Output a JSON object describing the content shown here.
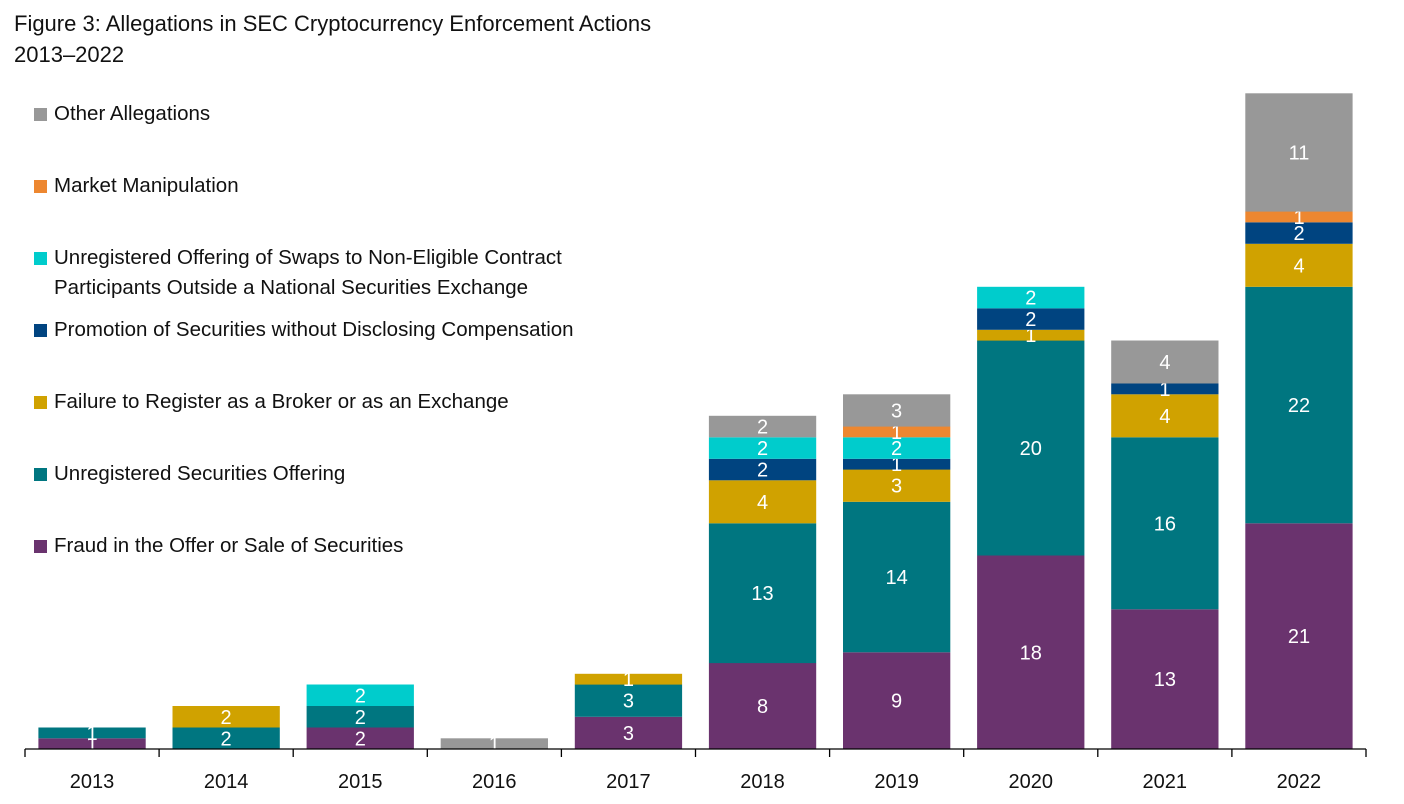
{
  "chart_data": {
    "type": "bar",
    "stacked": true,
    "title": "Figure 3: Allegations in SEC Cryptocurrency Enforcement Actions",
    "subtitle": "2013–2022",
    "xlabel": "",
    "ylabel": "",
    "ylim": [
      0,
      62
    ],
    "grid": false,
    "legend_position": "top-left",
    "categories": [
      "2013",
      "2014",
      "2015",
      "2016",
      "2017",
      "2018",
      "2019",
      "2020",
      "2021",
      "2022"
    ],
    "series": [
      {
        "name": "Fraud in the Offer or Sale of Securities",
        "color": "#6a336e",
        "values": [
          1,
          0,
          2,
          0,
          3,
          8,
          9,
          18,
          13,
          21
        ]
      },
      {
        "name": "Unregistered Securities Offering",
        "color": "#007680",
        "values": [
          1,
          2,
          2,
          0,
          3,
          13,
          14,
          20,
          16,
          22
        ]
      },
      {
        "name": "Failure to Register as a Broker or as an Exchange",
        "color": "#d0a200",
        "values": [
          0,
          2,
          0,
          0,
          1,
          4,
          3,
          1,
          4,
          4
        ]
      },
      {
        "name": "Promotion of Securities without Disclosing Compensation",
        "color": "#004480",
        "values": [
          0,
          0,
          0,
          0,
          0,
          2,
          1,
          2,
          1,
          2
        ]
      },
      {
        "name": "Unregistered Offering of Swaps to Non-Eligible Contract Participants Outside a National Securities Exchange",
        "color": "#00cccc",
        "values": [
          0,
          0,
          2,
          0,
          0,
          2,
          2,
          2,
          0,
          0
        ]
      },
      {
        "name": "Market Manipulation",
        "color": "#ed8730",
        "values": [
          0,
          0,
          0,
          0,
          0,
          0,
          1,
          0,
          0,
          1
        ]
      },
      {
        "name": "Other Allegations",
        "color": "#989898",
        "values": [
          0,
          0,
          0,
          1,
          0,
          2,
          3,
          0,
          4,
          11
        ]
      }
    ],
    "legend": [
      {
        "label": "Other Allegations",
        "color": "#989898"
      },
      {
        "label": "Market Manipulation",
        "color": "#ed8730"
      },
      {
        "label": "Unregistered Offering of Swaps to Non-Eligible Contract",
        "label_line2": "Participants Outside a National Securities Exchange",
        "color": "#00cccc"
      },
      {
        "label": "Promotion of Securities without Disclosing Compensation",
        "color": "#004480"
      },
      {
        "label": "Failure to Register as a Broker or as an Exchange",
        "color": "#d0a200"
      },
      {
        "label": "Unregistered Securities Offering",
        "color": "#007680"
      },
      {
        "label": "Fraud in the Offer or Sale of Securities",
        "color": "#6a336e"
      }
    ]
  }
}
